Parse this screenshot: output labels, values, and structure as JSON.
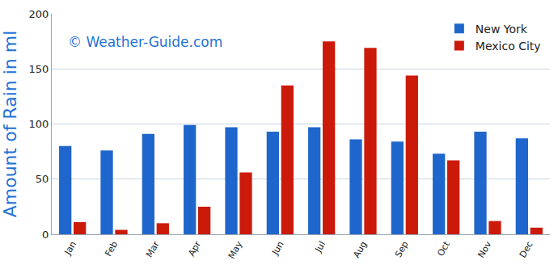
{
  "chart_data": {
    "type": "bar",
    "y_label": "Amount of Rain in ml",
    "annotations": [
      "© Weather-Guide.com"
    ],
    "categories": [
      "Jan",
      "Feb",
      "Mar",
      "Apr",
      "May",
      "Jun",
      "Jul",
      "Aug",
      "Sep",
      "Oct",
      "Nov",
      "Dec"
    ],
    "series": [
      {
        "name": "New York",
        "color": "#1f66cc",
        "values": [
          80,
          76,
          91,
          99,
          97,
          93,
          97,
          86,
          84,
          73,
          93,
          87
        ]
      },
      {
        "name": "Mexico City",
        "color": "#cc1a0a",
        "values": [
          11,
          4,
          10,
          25,
          56,
          135,
          175,
          169,
          144,
          67,
          12,
          6
        ]
      }
    ],
    "ylim": [
      0,
      200
    ],
    "yticks": [
      0,
      50,
      100,
      150,
      200
    ],
    "grid": true,
    "legend": "top-right"
  }
}
